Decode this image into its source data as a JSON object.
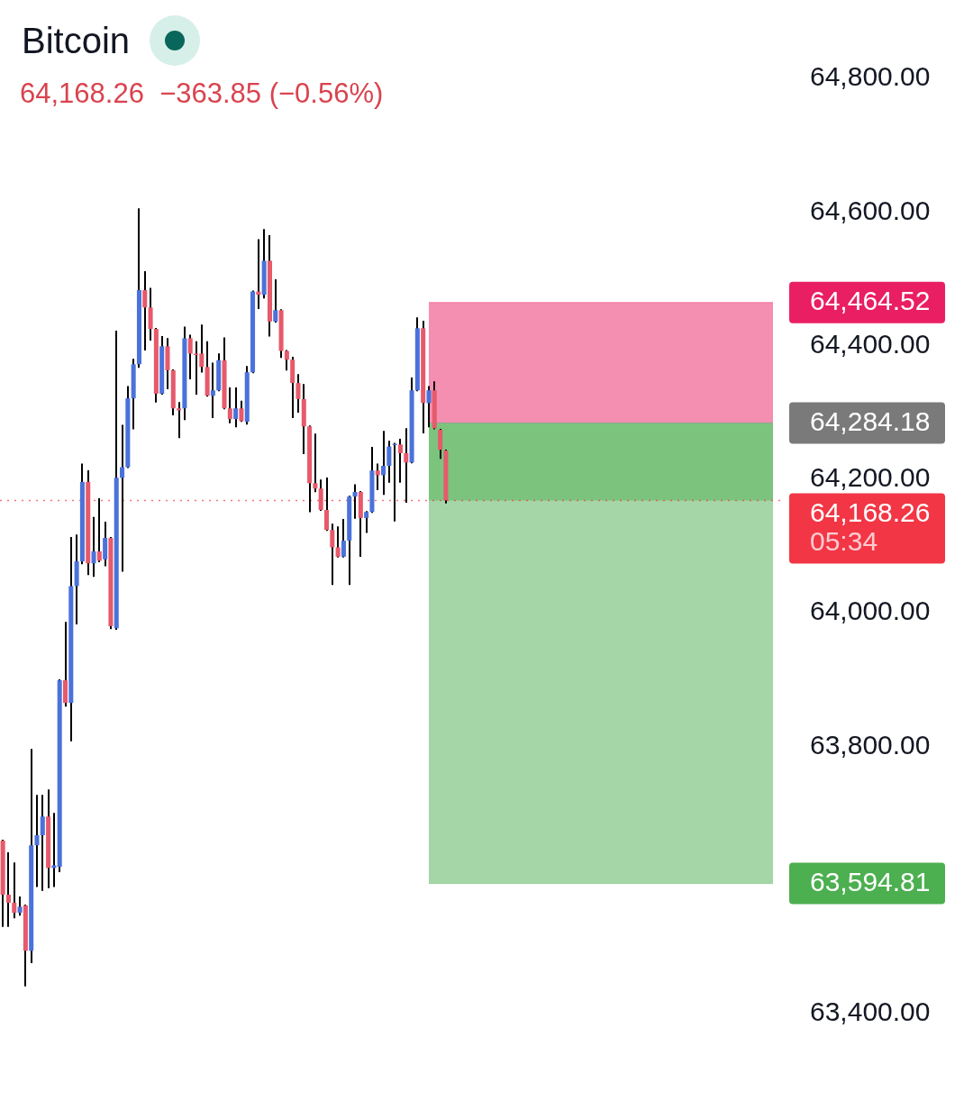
{
  "chart_data": {
    "type": "candlestick",
    "title": "Bitcoin",
    "subtitle": "64,168.26  −363.85 (−0.56%)",
    "annotations": [
      "05:34"
    ],
    "categories": [
      null,
      null,
      null,
      null,
      null,
      null,
      null,
      null,
      null,
      null,
      null,
      null,
      null,
      null,
      null,
      null,
      null,
      null,
      null,
      null,
      null,
      null,
      null,
      null,
      null,
      null,
      null,
      null,
      null,
      null,
      null,
      null,
      null,
      null,
      null,
      null,
      null,
      null,
      null,
      null,
      null,
      null,
      null,
      null,
      null,
      null,
      null,
      null,
      null,
      null,
      null,
      null,
      null,
      null,
      null,
      null,
      null,
      null,
      null,
      null,
      null,
      null,
      null,
      null,
      null,
      null,
      null,
      null,
      null,
      null,
      null,
      null,
      null,
      null,
      null,
      null,
      null,
      null,
      null,
      null,
      null,
      null,
      null,
      null,
      null,
      null,
      null,
      null,
      null,
      null,
      null,
      null,
      null,
      null,
      null,
      null,
      null,
      null,
      null,
      null,
      null,
      null,
      null,
      null,
      null,
      null,
      null,
      null,
      null,
      null,
      null,
      null,
      null,
      null,
      null,
      null,
      null,
      null,
      null,
      null,
      null,
      null,
      null,
      null,
      null,
      null,
      null,
      null,
      null,
      null,
      null,
      null,
      null,
      null,
      null,
      null,
      null,
      null
    ],
    "ohlc": [
      [
        63659,
        63659,
        63531,
        63578
      ],
      [
        63578,
        63640,
        63531,
        63566
      ],
      [
        63566,
        63625,
        63544,
        63551
      ],
      [
        63551,
        63574,
        63548,
        63560
      ],
      [
        63562,
        63562,
        63442,
        63494
      ],
      [
        63494,
        63795,
        63477,
        63652
      ],
      [
        63652,
        63726,
        63591,
        63667
      ],
      [
        63667,
        63726,
        63585,
        63695
      ],
      [
        63695,
        63734,
        63589,
        63618
      ],
      [
        63618,
        63699,
        63591,
        63622
      ],
      [
        63620,
        63899,
        63613,
        63899
      ],
      [
        63899,
        63985,
        63861,
        63865
      ],
      [
        63865,
        64112,
        63809,
        64040
      ],
      [
        64040,
        64116,
        63984,
        64077
      ],
      [
        64077,
        64222,
        64074,
        64196
      ],
      [
        64196,
        64212,
        64058,
        64074
      ],
      [
        64074,
        64142,
        64055,
        64092
      ],
      [
        64092,
        64170,
        64077,
        64078
      ],
      [
        64080,
        64135,
        64071,
        64112
      ],
      [
        64112,
        64112,
        63977,
        63980
      ],
      [
        63977,
        64421,
        63976,
        64202
      ],
      [
        64202,
        64280,
        64063,
        64218
      ],
      [
        64218,
        64338,
        64218,
        64321
      ],
      [
        64321,
        64379,
        64276,
        64372
      ],
      [
        64372,
        64604,
        64368,
        64483
      ],
      [
        64483,
        64510,
        64394,
        64457
      ],
      [
        64457,
        64485,
        64409,
        64425
      ],
      [
        64425,
        64425,
        64316,
        64328
      ],
      [
        64328,
        64413,
        64328,
        64399
      ],
      [
        64399,
        64410,
        64336,
        64363
      ],
      [
        64363,
        64363,
        64297,
        64306
      ],
      [
        64306,
        64314,
        64263,
        64303
      ],
      [
        64306,
        64427,
        64290,
        64411
      ],
      [
        64411,
        64415,
        64351,
        64388
      ],
      [
        64388,
        64405,
        64328,
        64386
      ],
      [
        64388,
        64430,
        64361,
        64368
      ],
      [
        64368,
        64405,
        64325,
        64325
      ],
      [
        64325,
        64373,
        64293,
        64333
      ],
      [
        64333,
        64387,
        64333,
        64378
      ],
      [
        64378,
        64411,
        64306,
        64306
      ],
      [
        64306,
        64336,
        64285,
        64290
      ],
      [
        64290,
        64336,
        64279,
        64306
      ],
      [
        64306,
        64316,
        64287,
        64287
      ],
      [
        64286,
        64368,
        64283,
        64360
      ],
      [
        64360,
        64481,
        64360,
        64481
      ],
      [
        64481,
        64558,
        64456,
        64476
      ],
      [
        64476,
        64573,
        64472,
        64527
      ],
      [
        64527,
        64564,
        64415,
        64436
      ],
      [
        64436,
        64498,
        64436,
        64453
      ],
      [
        64453,
        64453,
        64383,
        64392
      ],
      [
        64392,
        64392,
        64364,
        64379
      ],
      [
        64379,
        64382,
        64293,
        64344
      ],
      [
        64344,
        64356,
        64301,
        64320
      ],
      [
        64320,
        64341,
        64239,
        64279
      ],
      [
        64279,
        64279,
        64152,
        64194
      ],
      [
        64194,
        64267,
        64182,
        64186
      ],
      [
        64186,
        64198,
        64154,
        64154
      ],
      [
        64154,
        64201,
        64124,
        64124
      ],
      [
        64124,
        64132,
        64043,
        64098
      ],
      [
        64098,
        64128,
        64084,
        64084
      ],
      [
        64084,
        64139,
        64084,
        64108
      ],
      [
        64108,
        64174,
        64043,
        64174
      ],
      [
        64174,
        64191,
        64142,
        64181
      ],
      [
        64181,
        64181,
        64085,
        64142
      ],
      [
        64142,
        64151,
        64121,
        64151
      ],
      [
        64151,
        64247,
        64151,
        64213
      ],
      [
        64213,
        64222,
        64185,
        64206
      ],
      [
        64206,
        64271,
        64178,
        64220
      ],
      [
        64220,
        64256,
        64196,
        64249
      ],
      [
        64251,
        64253,
        64138,
        64253
      ],
      [
        64252,
        64259,
        64196,
        64239
      ],
      [
        64239,
        64275,
        64166,
        64225
      ],
      [
        64225,
        64351,
        64225,
        64333
      ],
      [
        64333,
        64441,
        64333,
        64426
      ],
      [
        64426,
        64436,
        64270,
        64314
      ],
      [
        64314,
        64338,
        64279,
        64333
      ],
      [
        64333,
        64345,
        64276,
        64276
      ],
      [
        64274,
        64274,
        64232,
        64244
      ],
      [
        64243,
        64243,
        64165,
        64168.26
      ],
      null,
      null,
      null,
      null,
      null,
      null,
      null,
      null,
      null,
      null,
      null,
      null,
      null,
      null,
      null,
      null,
      null,
      null,
      null,
      null,
      null,
      null,
      null,
      null,
      null,
      null,
      null,
      null,
      null,
      null,
      null,
      null,
      null,
      null,
      null,
      null,
      null,
      null,
      null,
      null,
      null,
      null,
      null,
      null,
      null,
      null,
      null,
      null,
      null,
      null,
      null,
      null,
      null,
      null,
      null,
      null,
      null,
      null,
      null
    ],
    "colors": [
      "#e65a6b",
      "#e65a6b",
      "#e65a6b",
      "#4a72da",
      "#e65a6b",
      "#4a72da",
      "#4a72da",
      "#4a72da",
      "#e65a6b",
      "#4a72da",
      "#4a72da",
      "#e65a6b",
      "#4a72da",
      "#4a72da",
      "#4a72da",
      "#e65a6b",
      "#4a72da",
      "#e65a6b",
      "#4a72da",
      "#e65a6b",
      "#4a72da",
      "#4a72da",
      "#4a72da",
      "#4a72da",
      "#4a72da",
      "#e65a6b",
      "#e65a6b",
      "#e65a6b",
      "#4a72da",
      "#e65a6b",
      "#e65a6b",
      "#e65a6b",
      "#4a72da",
      "#e65a6b",
      "#e65a6b",
      "#e65a6b",
      "#e65a6b",
      "#4a72da",
      "#4a72da",
      "#e65a6b",
      "#e65a6b",
      "#4a72da",
      "#e65a6b",
      "#4a72da",
      "#4a72da",
      "#e65a6b",
      "#4a72da",
      "#e65a6b",
      "#4a72da",
      "#e65a6b",
      "#e65a6b",
      "#e65a6b",
      "#e65a6b",
      "#e65a6b",
      "#e65a6b",
      "#e65a6b",
      "#e65a6b",
      "#e65a6b",
      "#e65a6b",
      "#e65a6b",
      "#4a72da",
      "#4a72da",
      "#4a72da",
      "#e65a6b",
      "#4a72da",
      "#4a72da",
      "#e65a6b",
      "#4a72da",
      "#4a72da",
      "#4a72da",
      "#e65a6b",
      "#e65a6b",
      "#4a72da",
      "#4a72da",
      "#e65a6b",
      "#4a72da",
      "#e65a6b",
      "#e65a6b",
      "#e65a6b",
      null,
      null,
      null,
      null,
      null,
      null,
      null,
      null,
      null,
      null,
      null,
      null,
      null,
      null,
      null,
      null,
      null,
      null,
      null,
      null,
      null,
      null,
      null,
      null,
      null,
      null,
      null,
      null,
      null,
      null,
      null,
      null,
      null,
      null,
      null,
      null,
      null,
      null,
      null,
      null,
      null,
      null,
      null,
      null,
      null,
      null,
      null,
      null,
      null,
      null,
      null,
      null,
      null,
      null,
      null,
      null,
      null,
      null,
      null
    ],
    "ylim": [
      63400,
      64800
    ],
    "yticks": [
      {
        "value": 63400,
        "label": "63,400.00"
      },
      {
        "value": 63800,
        "label": "63,800.00"
      },
      {
        "value": 64000,
        "label": "64,000.00"
      },
      {
        "value": 64200,
        "label": "64,200.00"
      },
      {
        "value": 64400,
        "label": "64,400.00"
      },
      {
        "value": 64600,
        "label": "64,600.00"
      },
      {
        "value": 64800,
        "label": "64,800.00"
      }
    ],
    "tick_labels": "y",
    "bands": [
      {
        "axis": "y",
        "from": 64284.18,
        "to": 64464.52,
        "color": "#f48fb1"
      },
      {
        "axis": "y",
        "from": 63594.81,
        "to": 64284.18,
        "color": "#a5d6a7"
      },
      {
        "axis": "y",
        "from": 64168.26,
        "to": 64284.18,
        "color": "#7cc47e"
      }
    ],
    "ref_lines": [
      {
        "axis": "y",
        "value": 64464.52,
        "label": "64,464.52",
        "color": "#e91e63"
      },
      {
        "axis": "y",
        "value": 64284.18,
        "label": "64,284.18",
        "color": "#7a7a7a"
      },
      {
        "axis": "y",
        "value": 64168.26,
        "label": "64,168.26",
        "color": "#f23645",
        "line_style": "dotted"
      },
      {
        "axis": "y",
        "value": 63594.81,
        "label": "63,594.81",
        "color": "#4caf50"
      }
    ]
  }
}
